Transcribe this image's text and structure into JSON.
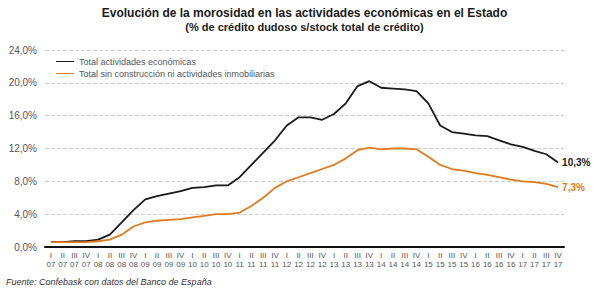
{
  "chart_data": {
    "type": "line",
    "title": "Evolución de la morosidad en las actividades económicas en el Estado",
    "subtitle": "(% de crédito dudoso s/stock total de crédito)",
    "categories": [
      "I\n07",
      "II\n07",
      "III\n07",
      "IV\n07",
      "I\n08",
      "II\n08",
      "III\n08",
      "IV\n08",
      "I\n09",
      "II\n09",
      "III\n09",
      "IV\n09",
      "I\n10",
      "II\n10",
      "III\n10",
      "IV\n10",
      "I\n11",
      "II\n11",
      "III\n11",
      "IV\n11",
      "I\n12",
      "II\n12",
      "III\n12",
      "IV\n12",
      "I\n13",
      "II\n13",
      "III\n13",
      "IV\n13",
      "I\n14",
      "II\n14",
      "III\n14",
      "IV\n14",
      "I\n15",
      "II\n15",
      "III\n15",
      "IV\n15",
      "I\n16",
      "II\n16",
      "III\n16",
      "IV\n16",
      "I\n17",
      "II\n17",
      "III\n17",
      "IV\n17"
    ],
    "series": [
      {
        "name": "Total actividades económicas",
        "color": "#1a1a1a",
        "values": [
          0.006,
          0.006,
          0.007,
          0.007,
          0.009,
          0.015,
          0.03,
          0.045,
          0.058,
          0.062,
          0.065,
          0.068,
          0.072,
          0.073,
          0.075,
          0.075,
          0.085,
          0.1,
          0.115,
          0.13,
          0.148,
          0.158,
          0.158,
          0.155,
          0.162,
          0.175,
          0.196,
          0.202,
          0.194,
          0.193,
          0.192,
          0.19,
          0.175,
          0.148,
          0.14,
          0.138,
          0.136,
          0.135,
          0.13,
          0.125,
          0.122,
          0.117,
          0.113,
          0.103
        ]
      },
      {
        "name": "Total sin construcción ni actividades inmobiliarias",
        "color": "#e07b20",
        "values": [
          0.006,
          0.006,
          0.006,
          0.006,
          0.007,
          0.009,
          0.015,
          0.025,
          0.03,
          0.032,
          0.033,
          0.034,
          0.036,
          0.038,
          0.04,
          0.04,
          0.042,
          0.05,
          0.06,
          0.072,
          0.08,
          0.085,
          0.09,
          0.095,
          0.1,
          0.108,
          0.118,
          0.121,
          0.119,
          0.12,
          0.12,
          0.119,
          0.11,
          0.1,
          0.095,
          0.093,
          0.09,
          0.088,
          0.085,
          0.082,
          0.08,
          0.079,
          0.077,
          0.073
        ]
      }
    ],
    "ylim": [
      0.0,
      0.24
    ],
    "yticks": [
      {
        "value": 0.0,
        "label": "0,0%"
      },
      {
        "value": 0.04,
        "label": "4,0%"
      },
      {
        "value": 0.08,
        "label": "8,0%"
      },
      {
        "value": 0.12,
        "label": "12,0%"
      },
      {
        "value": 0.16,
        "label": "16,0%"
      },
      {
        "value": 0.2,
        "label": "20,0%"
      },
      {
        "value": 0.24,
        "label": "24,0%"
      }
    ],
    "grid": true,
    "legend": "upper left",
    "annotations": [
      {
        "text": "10,3%",
        "series": "Total actividades económicas",
        "x": "IV\n17"
      },
      {
        "text": "7,3%",
        "series": "Total sin construcción ni actividades inmobiliarias",
        "x": "IV\n17"
      },
      {
        "text": "Fuente: Confebask con datos del Banco de España"
      }
    ]
  }
}
